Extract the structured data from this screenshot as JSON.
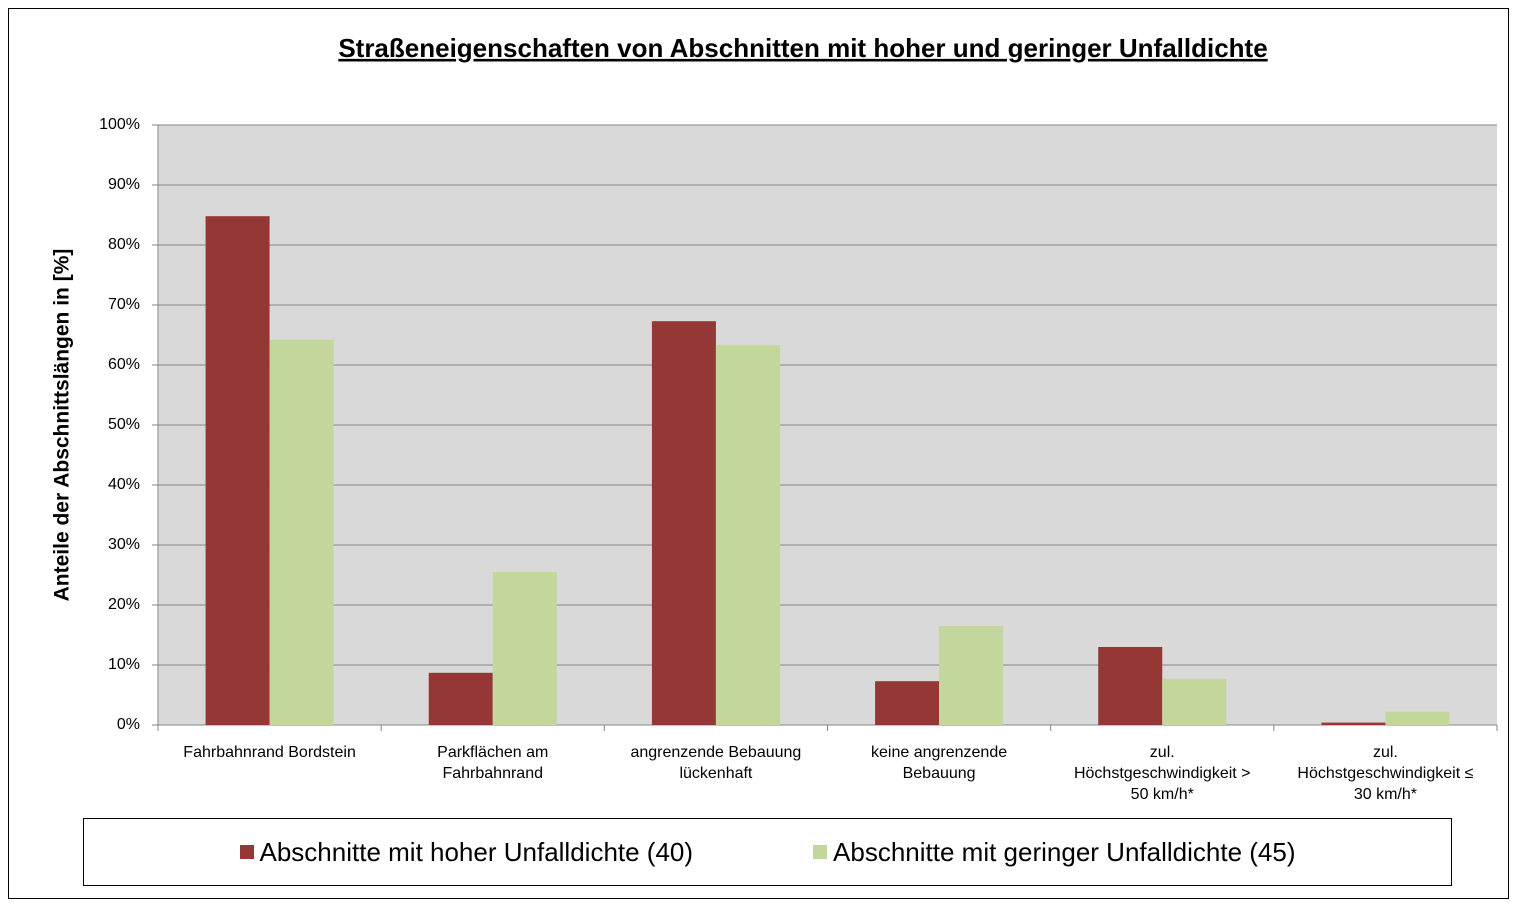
{
  "chart_data": {
    "type": "bar",
    "title": "Straßeneigenschaften von Abschnitten mit hoher und geringer Unfalldichte",
    "y_label": "Anteile der Abschnittslängen in [%]",
    "categories": [
      "Fahrbahnrand Bordstein",
      "Parkflächen am\nFahrbahnrand",
      "angrenzende Bebauung\nlückenhaft",
      "keine angrenzende\nBebauung",
      "zul.\nHöchstgeschwindigkeit >\n50 km/h*",
      "zul.\nHöchstgeschwindigkeit ≤\n30 km/h*"
    ],
    "series": [
      {
        "name": "Abschnitte mit hoher Unfalldichte (40)",
        "color": "#953735",
        "values": [
          84.8,
          8.7,
          67.3,
          7.3,
          13.0,
          0.4
        ]
      },
      {
        "name": "Abschnitte mit geringer Unfalldichte (45)",
        "color": "#c3d69b",
        "values": [
          64.2,
          25.5,
          63.3,
          16.5,
          7.7,
          2.2
        ]
      }
    ],
    "ylim": [
      0,
      100
    ],
    "yticks": [
      {
        "value": 0,
        "label": "0%"
      },
      {
        "value": 10,
        "label": "10%"
      },
      {
        "value": 20,
        "label": "20%"
      },
      {
        "value": 30,
        "label": "30%"
      },
      {
        "value": 40,
        "label": "40%"
      },
      {
        "value": 50,
        "label": "50%"
      },
      {
        "value": 60,
        "label": "60%"
      },
      {
        "value": 70,
        "label": "70%"
      },
      {
        "value": 80,
        "label": "80%"
      },
      {
        "value": 90,
        "label": "90%"
      },
      {
        "value": 100,
        "label": "100%"
      }
    ],
    "grid": true,
    "legend": "bottom"
  }
}
